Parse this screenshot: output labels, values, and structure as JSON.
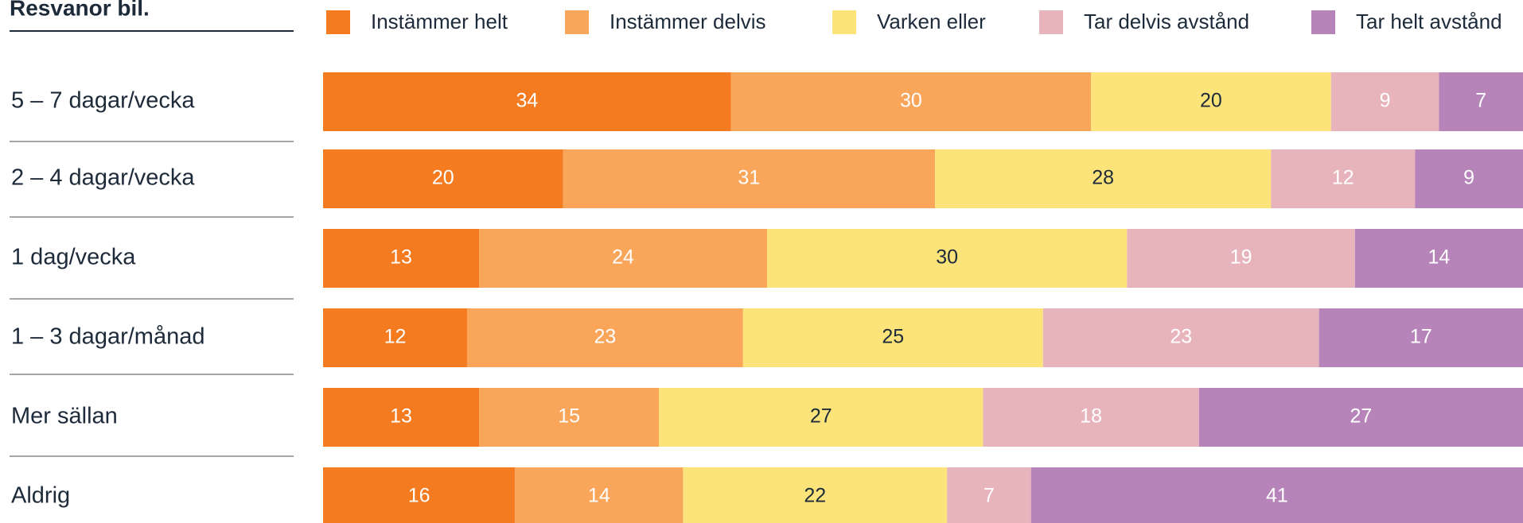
{
  "chart_data": {
    "type": "stacked_bar_horizontal",
    "title": "Resvanor bil.",
    "categories": [
      "5 – 7 dagar/vecka",
      "2 – 4 dagar/vecka",
      "1 dag/vecka",
      "1 – 3 dagar/månad",
      "Mer sällan",
      "Aldrig"
    ],
    "xlim": [
      0,
      100
    ],
    "series": [
      {
        "name": "Instämmer helt",
        "color": "#f47b20",
        "values": [
          34,
          20,
          13,
          12,
          13,
          16
        ]
      },
      {
        "name": "Instämmer delvis",
        "color": "#f9a55a",
        "values": [
          30,
          31,
          24,
          23,
          15,
          14
        ]
      },
      {
        "name": "Varken eller",
        "color": "#fde47a",
        "values": [
          20,
          28,
          30,
          25,
          27,
          22
        ]
      },
      {
        "name": "Tar delvis avstånd",
        "color": "#e8b4bc",
        "values": [
          9,
          12,
          19,
          23,
          18,
          7
        ]
      },
      {
        "name": "Tar helt avstånd",
        "color": "#b784b9",
        "values": [
          7,
          9,
          14,
          17,
          27,
          41
        ]
      }
    ]
  }
}
